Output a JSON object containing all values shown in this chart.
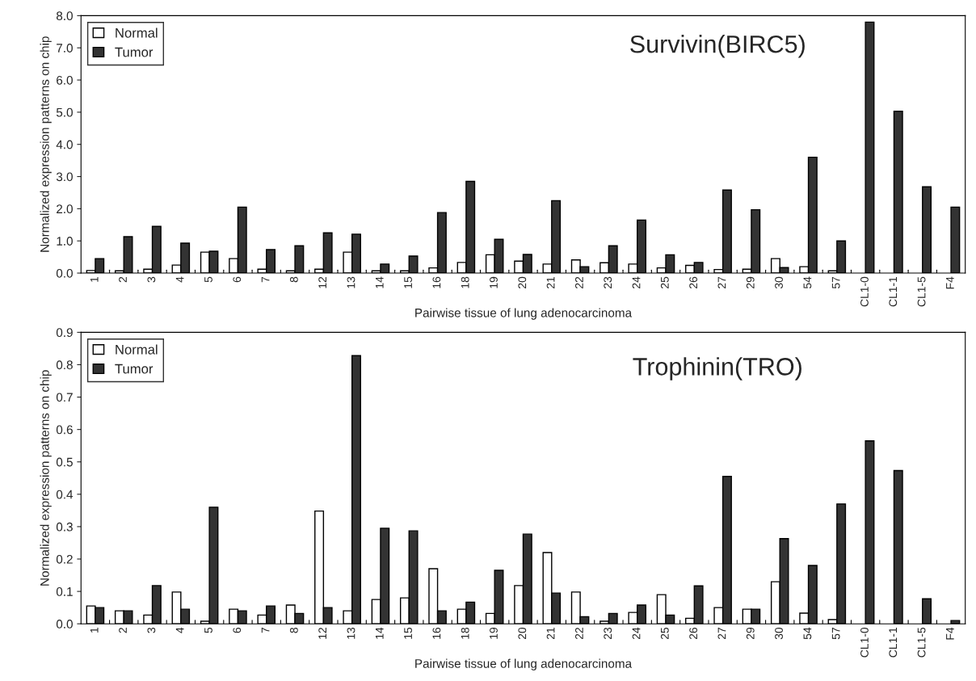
{
  "chart_data": [
    {
      "type": "bar",
      "title": "Survivin(BIRC5)",
      "xlabel": "Pairwise tissue of lung adenocarcinoma",
      "ylabel": "Normalized expression patterns on chip",
      "categories": [
        "1",
        "2",
        "3",
        "4",
        "5",
        "6",
        "7",
        "8",
        "12",
        "13",
        "14",
        "15",
        "16",
        "18",
        "19",
        "20",
        "21",
        "22",
        "23",
        "24",
        "25",
        "26",
        "27",
        "29",
        "30",
        "54",
        "57",
        "CL1-0",
        "CL1-1",
        "CL1-5",
        "F4"
      ],
      "series": [
        {
          "name": "Normal",
          "color": "#ffffff",
          "values": [
            0.08,
            0.07,
            0.12,
            0.25,
            0.65,
            0.45,
            0.12,
            0.07,
            0.12,
            0.65,
            0.07,
            0.07,
            0.16,
            0.33,
            0.57,
            0.37,
            0.28,
            0.41,
            0.32,
            0.28,
            0.16,
            0.24,
            0.11,
            0.12,
            0.45,
            0.2,
            0.07,
            null,
            null,
            null,
            null
          ]
        },
        {
          "name": "Tumor",
          "color": "#333333",
          "values": [
            0.45,
            1.13,
            1.45,
            0.93,
            0.68,
            2.05,
            0.73,
            0.85,
            1.25,
            1.21,
            0.28,
            0.53,
            1.88,
            2.85,
            1.05,
            0.58,
            2.25,
            0.2,
            0.85,
            1.65,
            0.57,
            0.33,
            2.58,
            1.97,
            0.17,
            3.6,
            1.0,
            7.8,
            5.03,
            2.68,
            2.05
          ]
        }
      ],
      "ylim": [
        0,
        8
      ],
      "yticks": [
        {
          "value": 0,
          "label": "0.0"
        },
        {
          "value": 1,
          "label": "1.0"
        },
        {
          "value": 2,
          "label": "2.0"
        },
        {
          "value": 3,
          "label": "3.0"
        },
        {
          "value": 4,
          "label": "4.0"
        },
        {
          "value": 5,
          "label": "5.0"
        },
        {
          "value": 6,
          "label": "6.0"
        },
        {
          "value": 7,
          "label": "7.0"
        },
        {
          "value": 8,
          "label": "8.0"
        }
      ],
      "legend": "top left",
      "grid": false
    },
    {
      "type": "bar",
      "title": "Trophinin(TRO)",
      "xlabel": "Pairwise tissue of lung adenocarcinoma",
      "ylabel": "Normalized expression patterns on chip",
      "categories": [
        "1",
        "2",
        "3",
        "4",
        "5",
        "6",
        "7",
        "8",
        "12",
        "13",
        "14",
        "15",
        "16",
        "18",
        "19",
        "20",
        "21",
        "22",
        "23",
        "24",
        "25",
        "26",
        "27",
        "29",
        "30",
        "54",
        "57",
        "CL1-0",
        "CL1-1",
        "CL1-5",
        "F4"
      ],
      "series": [
        {
          "name": "Normal",
          "color": "#ffffff",
          "values": [
            0.055,
            0.04,
            0.027,
            0.098,
            0.008,
            0.045,
            0.027,
            0.058,
            0.348,
            0.04,
            0.075,
            0.08,
            0.17,
            0.045,
            0.032,
            0.118,
            0.22,
            0.098,
            0.008,
            0.035,
            0.09,
            0.017,
            0.05,
            0.045,
            0.13,
            0.033,
            0.013,
            null,
            null,
            null,
            null
          ]
        },
        {
          "name": "Tumor",
          "color": "#333333",
          "values": [
            0.05,
            0.04,
            0.118,
            0.045,
            0.36,
            0.04,
            0.055,
            0.032,
            0.05,
            0.828,
            0.295,
            0.287,
            0.04,
            0.067,
            0.165,
            0.277,
            0.095,
            0.022,
            0.032,
            0.058,
            0.027,
            0.117,
            0.455,
            0.045,
            0.263,
            0.18,
            0.37,
            0.565,
            0.473,
            0.077,
            0.01
          ]
        }
      ],
      "ylim": [
        0,
        0.9
      ],
      "yticks": [
        {
          "value": 0,
          "label": "0.0"
        },
        0.1,
        0.2,
        0.3,
        0.4,
        0.5,
        0.6,
        0.7,
        0.8,
        0.9
      ],
      "legend": "top left",
      "grid": false
    }
  ]
}
